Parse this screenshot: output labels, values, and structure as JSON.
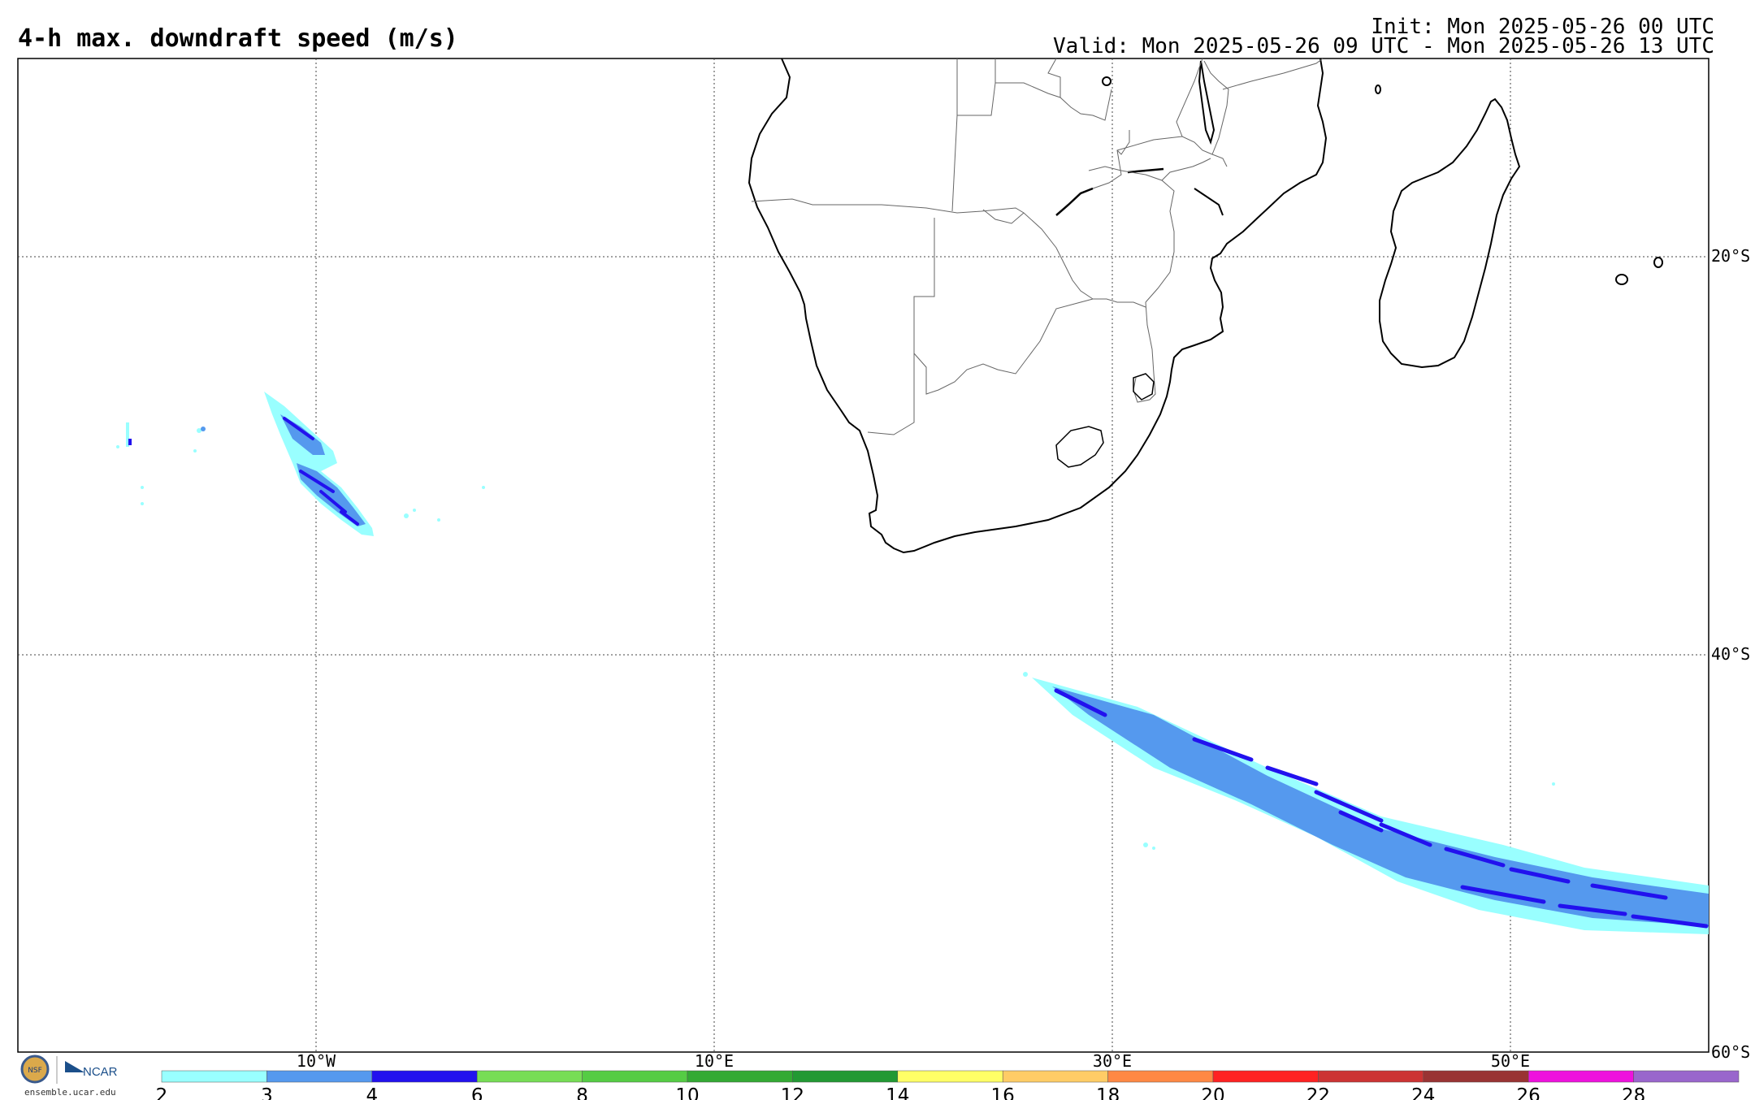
{
  "header": {
    "title": "4-h max. downdraft speed (m/s)",
    "init": "Init: Mon 2025-05-26 00 UTC",
    "valid": "Valid: Mon 2025-05-26 09 UTC - Mon 2025-05-26 13 UTC"
  },
  "map": {
    "lon_labels": [
      "10°W",
      "10°E",
      "30°E",
      "50°E"
    ],
    "lat_labels": [
      "20°S",
      "40°S",
      "60°S"
    ]
  },
  "colorbar": {
    "ticks": [
      "2",
      "3",
      "4",
      "6",
      "8",
      "10",
      "12",
      "14",
      "16",
      "18",
      "20",
      "22",
      "24",
      "26",
      "28"
    ],
    "colors": [
      "#99ffff",
      "#5599ee",
      "#2211ee",
      "#77dd55",
      "#55cc44",
      "#33aa33",
      "#229933",
      "#ffff66",
      "#ffcc66",
      "#ff8844",
      "#ff2222",
      "#cc3333",
      "#993333",
      "#ee11dd",
      "#9966cc"
    ]
  },
  "footer": {
    "logo_text": "NCAR",
    "site": "ensemble.ucar.edu",
    "nsf_text": "NSF"
  }
}
